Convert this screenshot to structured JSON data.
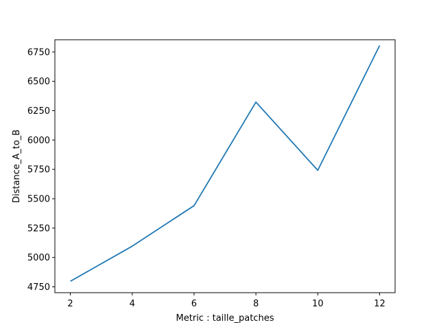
{
  "chart_data": {
    "type": "line",
    "title": "",
    "xlabel": "Metric : taille_patches",
    "ylabel": "Distance_A_to_B",
    "x": [
      2,
      4,
      6,
      8,
      10,
      12
    ],
    "series": [
      {
        "values": [
          4797,
          5096,
          5441,
          6323,
          5742,
          6805
        ]
      }
    ],
    "xlim": [
      1.5,
      12.5
    ],
    "ylim": [
      4700,
      6854
    ],
    "xticks": [
      2,
      4,
      6,
      8,
      10,
      12
    ],
    "xtick_labels": [
      "2",
      "4",
      "6",
      "8",
      "10",
      "12"
    ],
    "yticks": [
      4750,
      5000,
      5250,
      5500,
      5750,
      6000,
      6250,
      6500,
      6750
    ],
    "ytick_labels": [
      "4750",
      "5000",
      "5250",
      "5500",
      "5750",
      "6000",
      "6250",
      "6500",
      "6750"
    ],
    "grid": false,
    "legend": "none",
    "line_color": "#1f77b4"
  }
}
